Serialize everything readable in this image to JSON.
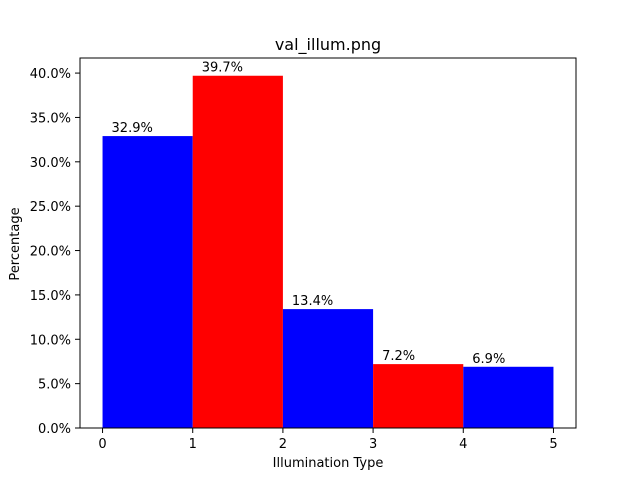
{
  "chart_data": {
    "type": "bar",
    "title": "val_illum.png",
    "xlabel": "Illumination Type",
    "ylabel": "Percentage",
    "bins": [
      {
        "x_start": 0,
        "x_end": 1,
        "value": 32.9,
        "label": "32.9%",
        "color": "#0000ff"
      },
      {
        "x_start": 1,
        "x_end": 2,
        "value": 39.7,
        "label": "39.7%",
        "color": "#ff0000"
      },
      {
        "x_start": 2,
        "x_end": 3,
        "value": 13.4,
        "label": "13.4%",
        "color": "#0000ff"
      },
      {
        "x_start": 3,
        "x_end": 4,
        "value": 7.2,
        "label": "7.2%",
        "color": "#ff0000"
      },
      {
        "x_start": 4,
        "x_end": 5,
        "value": 6.9,
        "label": "6.9%",
        "color": "#0000ff"
      }
    ],
    "xlim": [
      -0.25,
      5.25
    ],
    "ylim": [
      0,
      41.7
    ],
    "x_ticks": [
      {
        "value": 0,
        "label": "0"
      },
      {
        "value": 1,
        "label": "1"
      },
      {
        "value": 2,
        "label": "2"
      },
      {
        "value": 3,
        "label": "3"
      },
      {
        "value": 4,
        "label": "4"
      },
      {
        "value": 5,
        "label": "5"
      }
    ],
    "y_ticks": [
      {
        "value": 0,
        "label": "0.0%"
      },
      {
        "value": 5,
        "label": "5.0%"
      },
      {
        "value": 10,
        "label": "10.0%"
      },
      {
        "value": 15,
        "label": "15.0%"
      },
      {
        "value": 20,
        "label": "20.0%"
      },
      {
        "value": 25,
        "label": "25.0%"
      },
      {
        "value": 30,
        "label": "30.0%"
      },
      {
        "value": 35,
        "label": "35.0%"
      },
      {
        "value": 40,
        "label": "40.0%"
      }
    ],
    "grid": false,
    "legend": "none"
  }
}
